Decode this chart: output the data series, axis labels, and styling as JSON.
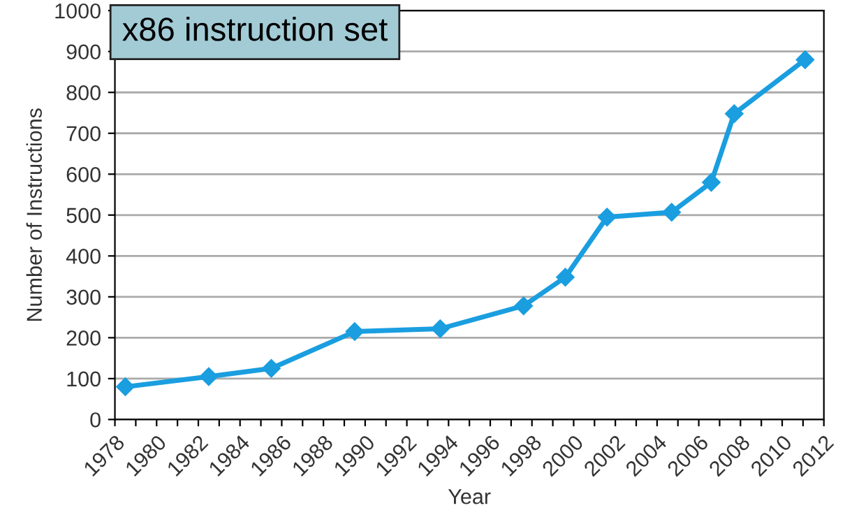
{
  "chart_data": {
    "type": "line",
    "title": "x86 instruction set",
    "xlabel": "Year",
    "ylabel": "Number of Instructions",
    "x": [
      1978.5,
      1982.5,
      1985.5,
      1989.5,
      1993.6,
      1997.6,
      1999.6,
      2001.6,
      2004.7,
      2006.6,
      2007.7,
      2011.1
    ],
    "series": [
      {
        "color": "#1a9ee0",
        "values": [
          80,
          105,
          125,
          215,
          222,
          278,
          348,
          495,
          507,
          580,
          748,
          880
        ]
      }
    ],
    "xlim": [
      1978,
      2012
    ],
    "xticks": [
      1978,
      {
        "value": 1979,
        "label": null
      },
      1980,
      {
        "value": 1981,
        "label": null
      },
      1982,
      {
        "value": 1983,
        "label": null
      },
      1984,
      {
        "value": 1985,
        "label": null
      },
      1986,
      {
        "value": 1987,
        "label": null
      },
      1988,
      {
        "value": 1989,
        "label": null
      },
      1990,
      {
        "value": 1991,
        "label": null
      },
      1992,
      {
        "value": 1993,
        "label": null
      },
      1994,
      {
        "value": 1995,
        "label": null
      },
      1996,
      {
        "value": 1997,
        "label": null
      },
      1998,
      {
        "value": 1999,
        "label": null
      },
      2000,
      {
        "value": 2001,
        "label": null
      },
      2002,
      {
        "value": 2003,
        "label": null
      },
      2004,
      {
        "value": 2005,
        "label": null
      },
      2006,
      {
        "value": 2007,
        "label": null
      },
      2008,
      {
        "value": 2009,
        "label": null
      },
      2010,
      {
        "value": 2011,
        "label": null
      },
      2012
    ],
    "ylim": [
      0,
      1000
    ],
    "yticks": [
      0,
      100,
      200,
      300,
      400,
      500,
      600,
      700,
      800,
      900,
      1000
    ],
    "grid": "y",
    "marker": "diamond",
    "line_style": "solid",
    "legend": false
  }
}
